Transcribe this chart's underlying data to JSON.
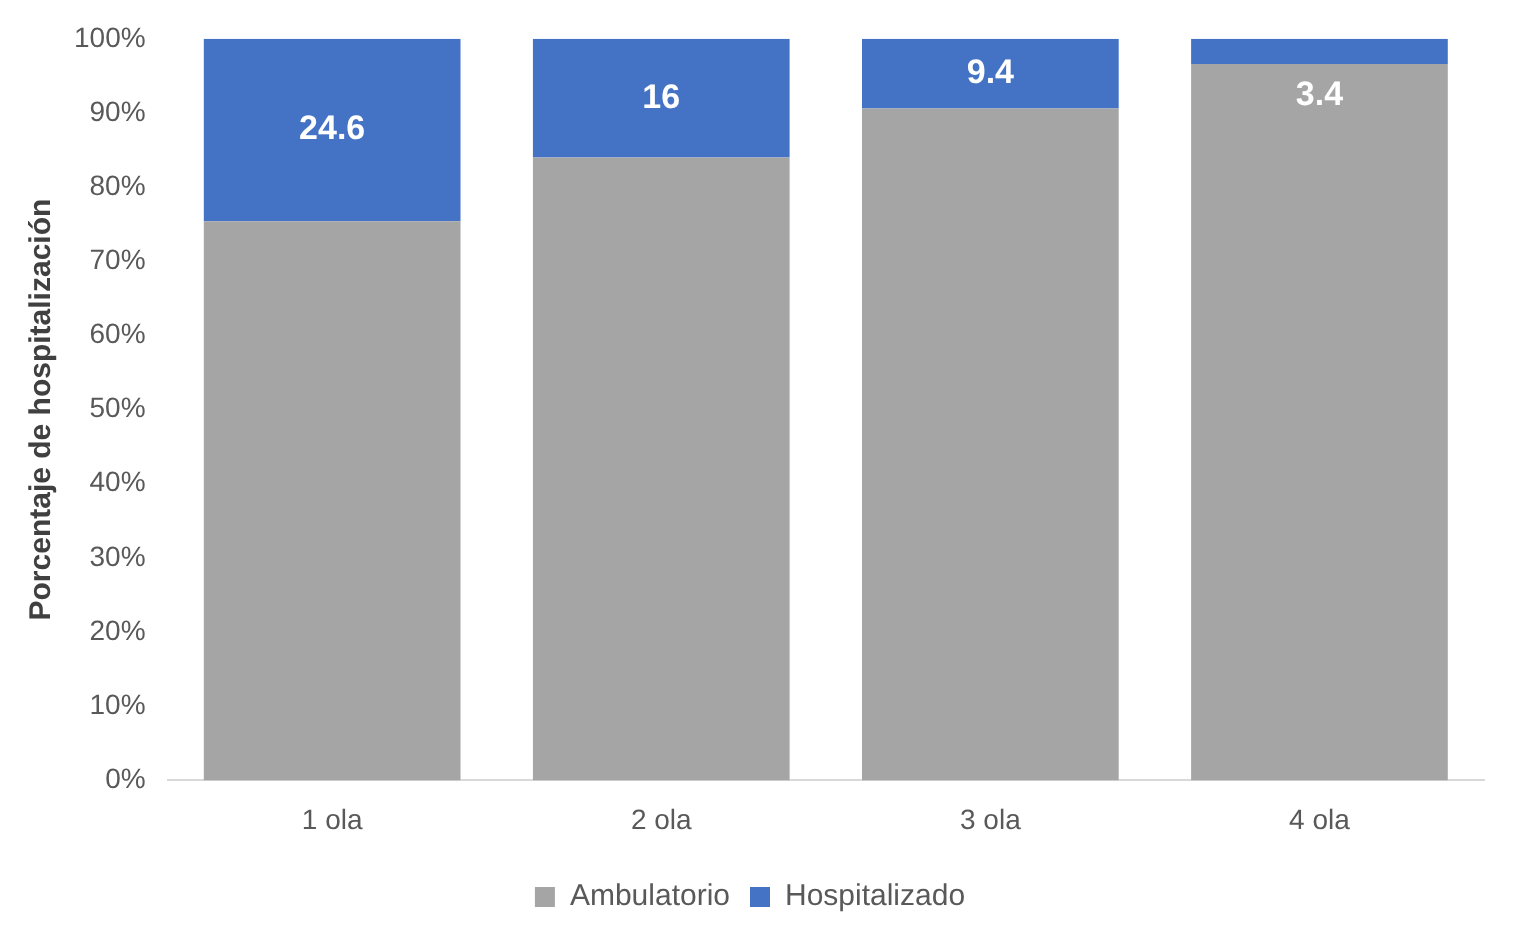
{
  "chart_data": {
    "type": "bar",
    "stacked": true,
    "ylabel": "Porcentaje de hospitalización",
    "categories": [
      "1 ola",
      "2 ola",
      "3 ola",
      "4 ola"
    ],
    "series": [
      {
        "name": "Ambulatorio",
        "color": "#a5a5a5",
        "values": [
          75.4,
          84,
          90.6,
          96.6
        ]
      },
      {
        "name": "Hospitalizado",
        "color": "#4472c4",
        "values": [
          24.6,
          16,
          9.4,
          3.4
        ],
        "value_labels": [
          "24.6",
          "16",
          "9.4",
          "3.4"
        ]
      }
    ],
    "ylim": [
      0,
      100
    ],
    "yticks": [
      {
        "value": 0,
        "label": "0%"
      },
      {
        "value": 10,
        "label": "10%"
      },
      {
        "value": 20,
        "label": "20%"
      },
      {
        "value": 30,
        "label": "30%"
      },
      {
        "value": 40,
        "label": "40%"
      },
      {
        "value": 50,
        "label": "50%"
      },
      {
        "value": 60,
        "label": "60%"
      },
      {
        "value": 70,
        "label": "70%"
      },
      {
        "value": 80,
        "label": "80%"
      },
      {
        "value": 90,
        "label": "90%"
      },
      {
        "value": 100,
        "label": "100%"
      }
    ],
    "legend": "bottom"
  }
}
